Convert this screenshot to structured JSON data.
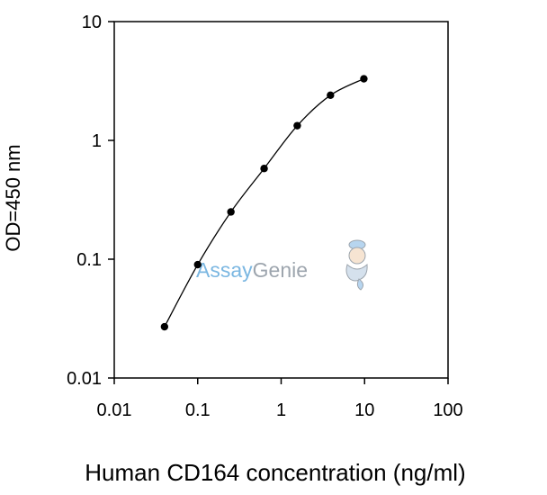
{
  "chart_data": {
    "type": "line",
    "title": "",
    "xlabel": "Human CD164 concentration (ng/ml)",
    "ylabel": "OD=450 nm",
    "x_scale": "log",
    "y_scale": "log",
    "xlim": [
      0.01,
      100
    ],
    "ylim": [
      0.01,
      10
    ],
    "x_ticks": [
      "0.01",
      "0.1",
      "1",
      "10",
      "100"
    ],
    "y_ticks": [
      "0.01",
      "0.1",
      "1",
      "10"
    ],
    "grid": false,
    "legend": "none",
    "series": [
      {
        "x": [
          0.04,
          0.1,
          0.25,
          0.625,
          1.56,
          3.9,
          9.8
        ],
        "y": [
          0.027,
          0.09,
          0.25,
          0.58,
          1.33,
          2.4,
          3.3
        ]
      }
    ]
  },
  "watermark": {
    "part1": "Assay",
    "part2": "Genie",
    "color1": "#4f9fd8",
    "color2": "#7d8893",
    "icon": "genie-mascot-icon"
  },
  "colors": {
    "line": "#000000",
    "marker": "#000000",
    "axis": "#000000"
  }
}
